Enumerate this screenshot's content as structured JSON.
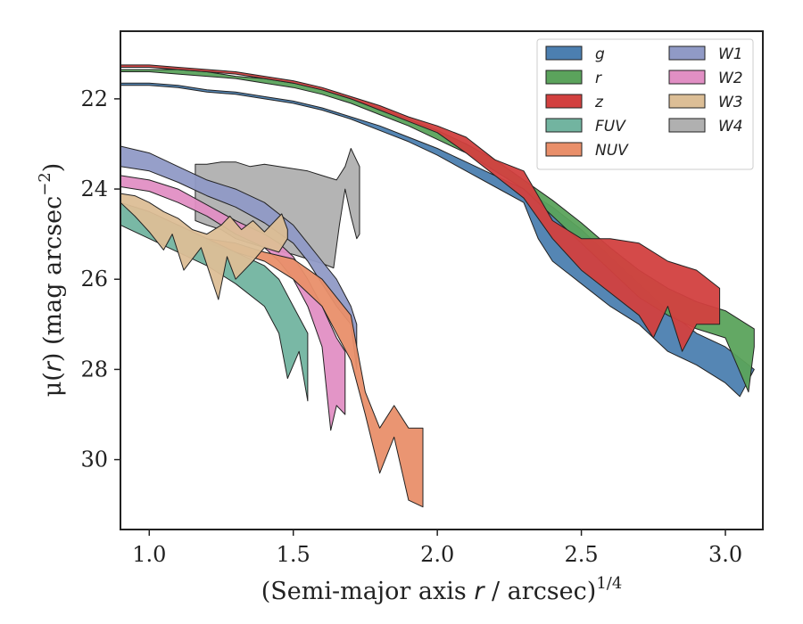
{
  "chart_data": {
    "type": "area",
    "title": "",
    "xlabel": "(Semi-major axis r / arcsec)",
    "xlabel_parts": {
      "pre": "(Semi-major axis ",
      "var": "r",
      "post": " / arcsec)",
      "sup": "1/4"
    },
    "ylabel": "μ(r) (mag arcsec⁻²)",
    "ylabel_parts": {
      "mu": "μ(",
      "var": "r",
      "mid": ") (mag arcsec",
      "sup": "−2",
      "end": ")"
    },
    "xlim": [
      0.9,
      3.13
    ],
    "ylim": [
      31.55,
      20.5
    ],
    "y_inverted": true,
    "xticks": [
      1.0,
      1.5,
      2.0,
      2.5,
      3.0
    ],
    "xtick_labels": [
      "1.0",
      "1.5",
      "2.0",
      "2.5",
      "3.0"
    ],
    "yticks": [
      22,
      24,
      26,
      28,
      30
    ],
    "ytick_labels": [
      "22",
      "24",
      "26",
      "28",
      "30"
    ],
    "grid": false,
    "legend_position": "top-right",
    "legend_columns": 2,
    "series": [
      {
        "name": "W4",
        "color": "#b0b0b0",
        "upper": [
          [
            1.16,
            23.45
          ],
          [
            1.2,
            23.45
          ],
          [
            1.25,
            23.4
          ],
          [
            1.3,
            23.4
          ],
          [
            1.35,
            23.5
          ],
          [
            1.4,
            23.45
          ],
          [
            1.5,
            23.55
          ],
          [
            1.55,
            23.6
          ],
          [
            1.6,
            23.7
          ],
          [
            1.65,
            23.8
          ],
          [
            1.68,
            23.5
          ],
          [
            1.7,
            23.1
          ],
          [
            1.73,
            23.5
          ],
          [
            1.73,
            24.0
          ]
        ],
        "lower": [
          [
            1.16,
            24.7
          ],
          [
            1.2,
            24.8
          ],
          [
            1.25,
            24.9
          ],
          [
            1.3,
            25.1
          ],
          [
            1.35,
            25.2
          ],
          [
            1.4,
            25.3
          ],
          [
            1.5,
            25.45
          ],
          [
            1.55,
            25.55
          ],
          [
            1.6,
            25.65
          ],
          [
            1.64,
            25.75
          ],
          [
            1.66,
            24.8
          ],
          [
            1.68,
            24.0
          ],
          [
            1.7,
            24.6
          ],
          [
            1.72,
            25.1
          ],
          [
            1.73,
            25.0
          ]
        ]
      },
      {
        "name": "W1",
        "color": "#909ac6",
        "upper": [
          [
            0.9,
            23.05
          ],
          [
            1.0,
            23.2
          ],
          [
            1.1,
            23.5
          ],
          [
            1.2,
            23.8
          ],
          [
            1.3,
            24.0
          ],
          [
            1.4,
            24.3
          ],
          [
            1.5,
            24.8
          ],
          [
            1.55,
            25.2
          ],
          [
            1.6,
            25.6
          ],
          [
            1.65,
            26.0
          ],
          [
            1.7,
            26.6
          ],
          [
            1.72,
            27.0
          ]
        ],
        "lower": [
          [
            0.9,
            23.5
          ],
          [
            1.0,
            23.6
          ],
          [
            1.1,
            23.85
          ],
          [
            1.2,
            24.15
          ],
          [
            1.3,
            24.4
          ],
          [
            1.4,
            24.75
          ],
          [
            1.5,
            25.2
          ],
          [
            1.55,
            25.6
          ],
          [
            1.6,
            26.1
          ],
          [
            1.65,
            26.6
          ],
          [
            1.7,
            27.0
          ],
          [
            1.72,
            28.0
          ]
        ]
      },
      {
        "name": "W2",
        "color": "#e18fc4",
        "upper": [
          [
            0.9,
            23.7
          ],
          [
            1.0,
            23.8
          ],
          [
            1.1,
            24.0
          ],
          [
            1.2,
            24.35
          ],
          [
            1.3,
            24.7
          ],
          [
            1.4,
            25.0
          ],
          [
            1.45,
            25.2
          ],
          [
            1.5,
            25.5
          ],
          [
            1.55,
            26.0
          ],
          [
            1.6,
            26.6
          ],
          [
            1.65,
            27.3
          ],
          [
            1.68,
            27.6
          ]
        ],
        "lower": [
          [
            0.9,
            23.95
          ],
          [
            1.0,
            24.05
          ],
          [
            1.1,
            24.3
          ],
          [
            1.2,
            24.6
          ],
          [
            1.3,
            25.0
          ],
          [
            1.4,
            25.3
          ],
          [
            1.45,
            25.6
          ],
          [
            1.5,
            26.0
          ],
          [
            1.55,
            26.6
          ],
          [
            1.6,
            27.5
          ],
          [
            1.63,
            29.35
          ],
          [
            1.65,
            28.8
          ],
          [
            1.68,
            29.0
          ]
        ]
      },
      {
        "name": "NUV",
        "color": "#e98f6a",
        "upper": [
          [
            1.2,
            25.1
          ],
          [
            1.3,
            25.2
          ],
          [
            1.4,
            25.4
          ],
          [
            1.5,
            25.55
          ],
          [
            1.6,
            26.0
          ],
          [
            1.7,
            26.8
          ],
          [
            1.75,
            28.5
          ],
          [
            1.8,
            29.3
          ],
          [
            1.85,
            28.8
          ],
          [
            1.9,
            29.3
          ],
          [
            1.95,
            29.3
          ]
        ],
        "lower": [
          [
            1.2,
            25.2
          ],
          [
            1.3,
            25.4
          ],
          [
            1.4,
            25.6
          ],
          [
            1.5,
            26.0
          ],
          [
            1.6,
            26.6
          ],
          [
            1.7,
            27.8
          ],
          [
            1.75,
            29.0
          ],
          [
            1.8,
            30.3
          ],
          [
            1.85,
            29.5
          ],
          [
            1.9,
            30.9
          ],
          [
            1.95,
            31.05
          ]
        ]
      },
      {
        "name": "FUV",
        "color": "#72b4a0",
        "upper": [
          [
            0.9,
            24.3
          ],
          [
            1.0,
            24.5
          ],
          [
            1.1,
            24.8
          ],
          [
            1.2,
            25.1
          ],
          [
            1.3,
            25.4
          ],
          [
            1.4,
            25.7
          ],
          [
            1.45,
            26.0
          ],
          [
            1.5,
            26.6
          ],
          [
            1.55,
            27.2
          ]
        ],
        "lower": [
          [
            0.9,
            24.8
          ],
          [
            1.0,
            25.1
          ],
          [
            1.1,
            25.4
          ],
          [
            1.2,
            25.7
          ],
          [
            1.3,
            26.1
          ],
          [
            1.4,
            26.6
          ],
          [
            1.45,
            27.2
          ],
          [
            1.48,
            28.2
          ],
          [
            1.52,
            27.6
          ],
          [
            1.55,
            28.7
          ]
        ]
      },
      {
        "name": "W3",
        "color": "#dcbe96",
        "upper": [
          [
            0.9,
            24.1
          ],
          [
            0.95,
            24.15
          ],
          [
            1.0,
            24.3
          ],
          [
            1.05,
            24.5
          ],
          [
            1.1,
            24.65
          ],
          [
            1.15,
            24.9
          ],
          [
            1.2,
            25.0
          ],
          [
            1.25,
            24.8
          ],
          [
            1.28,
            24.6
          ],
          [
            1.32,
            24.9
          ],
          [
            1.36,
            24.7
          ],
          [
            1.4,
            24.95
          ],
          [
            1.46,
            24.55
          ],
          [
            1.48,
            24.9
          ]
        ],
        "lower": [
          [
            0.9,
            24.3
          ],
          [
            0.95,
            24.6
          ],
          [
            1.0,
            24.95
          ],
          [
            1.05,
            25.35
          ],
          [
            1.08,
            25.0
          ],
          [
            1.12,
            25.8
          ],
          [
            1.18,
            25.3
          ],
          [
            1.24,
            26.45
          ],
          [
            1.27,
            25.5
          ],
          [
            1.3,
            26.0
          ],
          [
            1.36,
            25.6
          ],
          [
            1.4,
            25.3
          ],
          [
            1.45,
            25.4
          ],
          [
            1.48,
            25.1
          ]
        ]
      },
      {
        "name": "g",
        "color": "#4c7fb0",
        "upper": [
          [
            0.9,
            21.65
          ],
          [
            1.0,
            21.65
          ],
          [
            1.1,
            21.7
          ],
          [
            1.2,
            21.8
          ],
          [
            1.3,
            21.85
          ],
          [
            1.4,
            21.95
          ],
          [
            1.5,
            22.05
          ],
          [
            1.6,
            22.2
          ],
          [
            1.7,
            22.4
          ],
          [
            1.8,
            22.6
          ],
          [
            1.9,
            22.85
          ],
          [
            2.0,
            23.1
          ],
          [
            2.1,
            23.4
          ],
          [
            2.2,
            23.7
          ],
          [
            2.3,
            24.0
          ],
          [
            2.4,
            24.4
          ],
          [
            2.5,
            24.9
          ],
          [
            2.6,
            25.5
          ],
          [
            2.7,
            26.1
          ],
          [
            2.8,
            26.7
          ],
          [
            2.9,
            27.2
          ],
          [
            3.0,
            27.5
          ],
          [
            3.08,
            27.9
          ]
        ],
        "lower": [
          [
            0.9,
            21.7
          ],
          [
            1.0,
            21.7
          ],
          [
            1.1,
            21.75
          ],
          [
            1.2,
            21.85
          ],
          [
            1.3,
            21.9
          ],
          [
            1.4,
            22.0
          ],
          [
            1.5,
            22.1
          ],
          [
            1.6,
            22.25
          ],
          [
            1.7,
            22.45
          ],
          [
            1.8,
            22.7
          ],
          [
            1.9,
            22.95
          ],
          [
            2.0,
            23.25
          ],
          [
            2.1,
            23.6
          ],
          [
            2.2,
            23.95
          ],
          [
            2.3,
            24.3
          ],
          [
            2.35,
            25.1
          ],
          [
            2.4,
            25.6
          ],
          [
            2.5,
            26.1
          ],
          [
            2.6,
            26.6
          ],
          [
            2.7,
            27.0
          ],
          [
            2.8,
            27.6
          ],
          [
            2.9,
            27.9
          ],
          [
            3.0,
            28.3
          ],
          [
            3.05,
            28.6
          ],
          [
            3.1,
            28.0
          ]
        ]
      },
      {
        "name": "r",
        "color": "#5ba35c",
        "upper": [
          [
            0.9,
            21.35
          ],
          [
            1.0,
            21.35
          ],
          [
            1.1,
            21.35
          ],
          [
            1.2,
            21.4
          ],
          [
            1.3,
            21.5
          ],
          [
            1.4,
            21.55
          ],
          [
            1.5,
            21.65
          ],
          [
            1.6,
            21.8
          ],
          [
            1.7,
            22.0
          ],
          [
            1.8,
            22.2
          ],
          [
            1.9,
            22.45
          ],
          [
            2.0,
            22.7
          ],
          [
            2.1,
            23.0
          ],
          [
            2.2,
            23.35
          ],
          [
            2.3,
            23.8
          ],
          [
            2.4,
            24.25
          ],
          [
            2.5,
            24.75
          ],
          [
            2.6,
            25.3
          ],
          [
            2.7,
            25.8
          ],
          [
            2.8,
            26.2
          ],
          [
            2.9,
            26.5
          ],
          [
            3.0,
            26.7
          ],
          [
            3.1,
            27.1
          ]
        ],
        "lower": [
          [
            0.9,
            21.4
          ],
          [
            1.0,
            21.4
          ],
          [
            1.1,
            21.45
          ],
          [
            1.2,
            21.5
          ],
          [
            1.3,
            21.55
          ],
          [
            1.4,
            21.65
          ],
          [
            1.5,
            21.75
          ],
          [
            1.6,
            21.9
          ],
          [
            1.7,
            22.1
          ],
          [
            1.8,
            22.35
          ],
          [
            1.9,
            22.6
          ],
          [
            2.0,
            22.9
          ],
          [
            2.1,
            23.2
          ],
          [
            2.2,
            23.6
          ],
          [
            2.3,
            24.0
          ],
          [
            2.4,
            24.6
          ],
          [
            2.5,
            25.2
          ],
          [
            2.6,
            25.8
          ],
          [
            2.7,
            26.4
          ],
          [
            2.8,
            26.8
          ],
          [
            2.9,
            27.1
          ],
          [
            3.0,
            27.3
          ],
          [
            3.08,
            28.5
          ],
          [
            3.1,
            27.5
          ]
        ]
      },
      {
        "name": "z",
        "color": "#d2403f",
        "upper": [
          [
            0.9,
            21.25
          ],
          [
            1.0,
            21.25
          ],
          [
            1.1,
            21.3
          ],
          [
            1.2,
            21.35
          ],
          [
            1.3,
            21.4
          ],
          [
            1.4,
            21.5
          ],
          [
            1.5,
            21.6
          ],
          [
            1.6,
            21.75
          ],
          [
            1.7,
            21.95
          ],
          [
            1.8,
            22.15
          ],
          [
            1.9,
            22.4
          ],
          [
            2.0,
            22.6
          ],
          [
            2.1,
            22.85
          ],
          [
            2.2,
            23.35
          ],
          [
            2.3,
            23.6
          ],
          [
            2.4,
            24.7
          ],
          [
            2.5,
            25.1
          ],
          [
            2.6,
            25.1
          ],
          [
            2.7,
            25.2
          ],
          [
            2.8,
            25.6
          ],
          [
            2.9,
            25.8
          ],
          [
            2.98,
            26.2
          ]
        ],
        "lower": [
          [
            0.9,
            21.3
          ],
          [
            1.0,
            21.3
          ],
          [
            1.1,
            21.35
          ],
          [
            1.2,
            21.4
          ],
          [
            1.3,
            21.45
          ],
          [
            1.4,
            21.55
          ],
          [
            1.5,
            21.65
          ],
          [
            1.6,
            21.8
          ],
          [
            1.7,
            22.0
          ],
          [
            1.8,
            22.25
          ],
          [
            1.9,
            22.5
          ],
          [
            2.0,
            22.75
          ],
          [
            2.1,
            23.2
          ],
          [
            2.2,
            23.7
          ],
          [
            2.3,
            24.2
          ],
          [
            2.4,
            25.1
          ],
          [
            2.5,
            25.8
          ],
          [
            2.6,
            26.3
          ],
          [
            2.7,
            26.8
          ],
          [
            2.75,
            27.3
          ],
          [
            2.8,
            26.6
          ],
          [
            2.85,
            27.6
          ],
          [
            2.9,
            27.0
          ],
          [
            2.98,
            27.0
          ]
        ]
      }
    ]
  },
  "legend": [
    {
      "label": "g",
      "color": "#4c7fb0"
    },
    {
      "label": "r",
      "color": "#5ba35c"
    },
    {
      "label": "z",
      "color": "#d2403f"
    },
    {
      "label": "FUV",
      "color": "#72b4a0"
    },
    {
      "label": "NUV",
      "color": "#e98f6a"
    },
    {
      "label": "W1",
      "color": "#909ac6"
    },
    {
      "label": "W2",
      "color": "#e18fc4"
    },
    {
      "label": "W3",
      "color": "#dcbe96"
    },
    {
      "label": "W4",
      "color": "#b0b0b0"
    }
  ]
}
